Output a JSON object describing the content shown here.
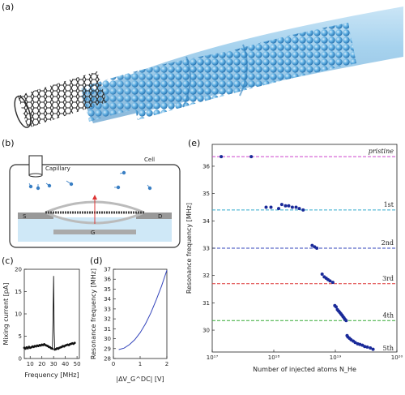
{
  "panels": {
    "a": "(a)",
    "b": "(b)",
    "c": "(c)",
    "d": "(d)",
    "e": "(e)"
  },
  "schematic": {
    "capillary": "Capillary",
    "cell": "Cell",
    "source": "S",
    "drain": "D",
    "gate": "G"
  },
  "chart_data": [
    {
      "id": "c",
      "type": "line",
      "xlabel": "Frequency [MHz]",
      "ylabel": "Mixing current [pA]",
      "xlim": [
        5,
        52
      ],
      "ylim": [
        0,
        20
      ],
      "xticks": [
        10,
        20,
        30,
        40,
        50
      ],
      "yticks": [
        0,
        5,
        10,
        15,
        20
      ],
      "series": [
        {
          "color": "#111111",
          "x": [
            5,
            6,
            7,
            8,
            9,
            10,
            11,
            12,
            13,
            14,
            15,
            16,
            17,
            18,
            19,
            20,
            21,
            22,
            23,
            24,
            25,
            26,
            27,
            28,
            29,
            29.5,
            30,
            30.5,
            31,
            32,
            33,
            34,
            35,
            36,
            37,
            38,
            39,
            40,
            41,
            42,
            43,
            44,
            45,
            46,
            47,
            48
          ],
          "y": [
            2.4,
            2.2,
            2.5,
            2.3,
            2.6,
            2.4,
            2.5,
            2.7,
            2.6,
            2.8,
            2.7,
            2.9,
            2.8,
            3.0,
            2.9,
            3.1,
            3.0,
            3.2,
            3.0,
            2.9,
            2.8,
            2.6,
            2.5,
            2.3,
            2.2,
            8.0,
            18.5,
            6.0,
            2.0,
            2.1,
            2.3,
            2.2,
            2.4,
            2.5,
            2.6,
            2.8,
            2.7,
            2.9,
            3.0,
            3.1,
            3.0,
            3.2,
            3.3,
            3.4,
            3.3,
            3.5
          ]
        }
      ]
    },
    {
      "id": "d",
      "type": "line",
      "xlabel": "|ΔV_G^DC| [V]",
      "ylabel": "Resonance frequency [MHz]",
      "xlim": [
        0,
        2
      ],
      "ylim": [
        28,
        37
      ],
      "xticks": [
        0,
        1,
        2
      ],
      "yticks": [
        28,
        29,
        30,
        31,
        32,
        33,
        34,
        35,
        36,
        37
      ],
      "series": [
        {
          "color": "#3344bb",
          "x": [
            0.2,
            0.4,
            0.6,
            0.8,
            1.0,
            1.2,
            1.4,
            1.6,
            1.8,
            1.9,
            2.0
          ],
          "y": [
            28.9,
            29.05,
            29.4,
            29.9,
            30.6,
            31.5,
            32.6,
            33.9,
            35.3,
            36.1,
            36.9
          ]
        }
      ]
    },
    {
      "id": "e",
      "type": "scatter",
      "xlabel": "Number of injected atoms N_He",
      "ylabel": "Resonance frequency [MHz]",
      "xscale": "log",
      "xlim": [
        1e+17,
        1e+20
      ],
      "ylim": [
        29.2,
        36.8
      ],
      "xticks": [
        1e+17,
        1e+18,
        1e+19,
        1e+20
      ],
      "yticks": [
        30,
        31,
        32,
        33,
        34,
        35,
        36
      ],
      "hlines": [
        {
          "y": 36.35,
          "color": "#cc44cc",
          "label": "pristine"
        },
        {
          "y": 34.4,
          "color": "#33aacc",
          "label": "1st"
        },
        {
          "y": 33.0,
          "color": "#3344bb",
          "label": "2nd"
        },
        {
          "y": 31.7,
          "color": "#dd3333",
          "label": "3rd"
        },
        {
          "y": 30.35,
          "color": "#33aa33",
          "label": "4th"
        }
      ],
      "annotations": [
        {
          "y": 29.35,
          "label": "5th"
        }
      ],
      "series": [
        {
          "color": "#1a2a99",
          "x": [
            1.4e+17,
            4.3e+17,
            7.5e+17,
            9e+17,
            1.2e+18,
            1.35e+18,
            1.55e+18,
            1.75e+18,
            2e+18,
            2.3e+18,
            2.6e+18,
            3e+18,
            4.2e+18,
            4.6e+18,
            5e+18,
            6.1e+18,
            6.6e+18,
            7.1e+18,
            7.6e+18,
            8.2e+18,
            9.1e+18,
            9.8e+18,
            1.03e+19,
            1.08e+19,
            1.13e+19,
            1.18e+19,
            1.23e+19,
            1.28e+19,
            1.33e+19,
            1.38e+19,
            1.43e+19,
            1.5e+19,
            1.55e+19,
            1.6e+19,
            1.7e+19,
            1.8e+19,
            1.95e+19,
            2.1e+19,
            2.3e+19,
            2.5e+19,
            2.75e+19,
            3e+19,
            3.3e+19,
            3.7e+19,
            4.1e+19
          ],
          "y": [
            36.35,
            36.35,
            34.5,
            34.5,
            34.45,
            34.6,
            34.55,
            34.55,
            34.5,
            34.5,
            34.45,
            34.4,
            33.1,
            33.05,
            33.0,
            32.05,
            31.95,
            31.9,
            31.85,
            31.8,
            31.75,
            30.9,
            30.85,
            30.75,
            30.7,
            30.65,
            30.6,
            30.55,
            30.5,
            30.45,
            30.4,
            30.35,
            29.8,
            29.75,
            29.7,
            29.65,
            29.6,
            29.55,
            29.5,
            29.48,
            29.45,
            29.4,
            29.38,
            29.35,
            29.3
          ]
        }
      ]
    }
  ]
}
